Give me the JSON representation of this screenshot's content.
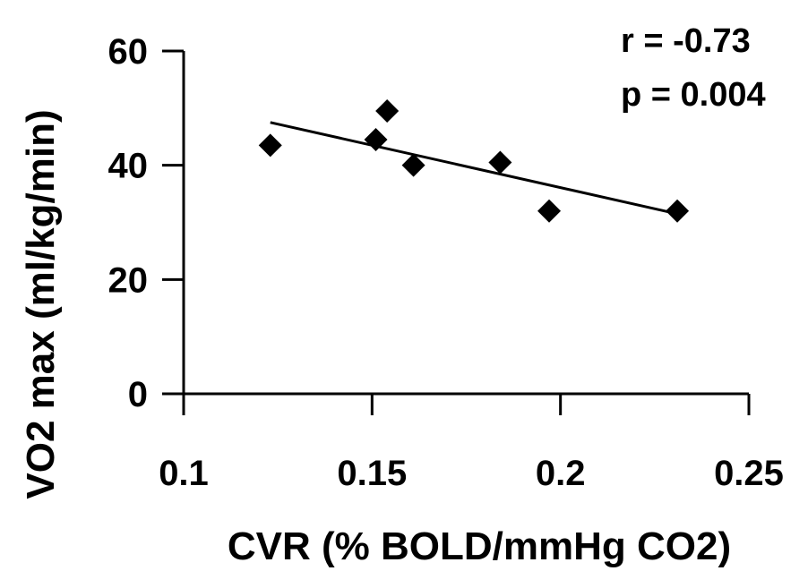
{
  "chart_data": {
    "type": "scatter",
    "xlabel": "CVR (% BOLD/mmHg CO2)",
    "ylabel": "VO2 max (ml/kg/min)",
    "xlim": [
      0.1,
      0.25
    ],
    "ylim": [
      0,
      60
    ],
    "x_ticks": [
      0.1,
      0.15,
      0.2,
      0.25
    ],
    "y_ticks": [
      0,
      20,
      40,
      60
    ],
    "x_tick_labels": [
      "0.1",
      "0.15",
      "0.2",
      "0.25"
    ],
    "y_tick_labels": [
      "0",
      "20",
      "40",
      "60"
    ],
    "points": [
      {
        "x": 0.123,
        "y": 43.5
      },
      {
        "x": 0.151,
        "y": 44.5
      },
      {
        "x": 0.154,
        "y": 49.5
      },
      {
        "x": 0.161,
        "y": 40
      },
      {
        "x": 0.184,
        "y": 40.5
      },
      {
        "x": 0.197,
        "y": 32
      },
      {
        "x": 0.231,
        "y": 32
      }
    ],
    "trendline": {
      "x": [
        0.123,
        0.231
      ],
      "y": [
        47.5,
        31.5
      ]
    },
    "annotations": [
      "r = -0.73",
      "p = 0.004"
    ],
    "marker": "diamond",
    "grid": false
  }
}
